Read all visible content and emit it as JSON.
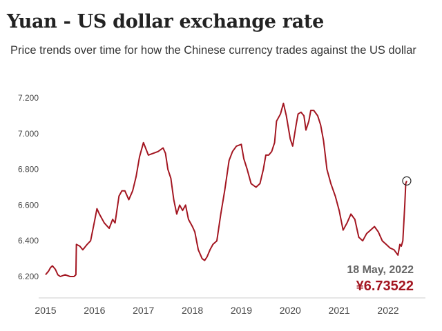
{
  "chart_data": {
    "type": "line",
    "title": "Yuan - US dollar exchange rate",
    "subtitle": "Price trends over time for how the Chinese currency trades against the US dollar",
    "xlabel": "",
    "ylabel": "",
    "ylim": [
      6.18,
      7.22
    ],
    "xlim": [
      2015.0,
      2022.75
    ],
    "y_ticks": [
      "6.200",
      "6.400",
      "6.600",
      "6.800",
      "7.000",
      "7.200"
    ],
    "y_tick_values": [
      6.2,
      6.4,
      6.6,
      6.8,
      7.0,
      7.2
    ],
    "x_ticks": [
      "2015",
      "2016",
      "2017",
      "2018",
      "2019",
      "2020",
      "2021",
      "2022"
    ],
    "x_tick_values": [
      2015,
      2016,
      2017,
      2018,
      2019,
      2020,
      2021,
      2022
    ],
    "grid": false,
    "legend": "none",
    "colors": {
      "line": "#a31621",
      "axis": "#cccccc",
      "marker": "#222222"
    },
    "series": [
      {
        "x": [
          2015.0,
          2015.03,
          2015.06,
          2015.1,
          2015.14,
          2015.2,
          2015.25,
          2015.3,
          2015.4,
          2015.5,
          2015.58,
          2015.62,
          2015.63,
          2015.7,
          2015.76,
          2015.85,
          2015.92,
          2016.0,
          2016.05,
          2016.1,
          2016.2,
          2016.3,
          2016.37,
          2016.42,
          2016.5,
          2016.56,
          2016.62,
          2016.7,
          2016.78,
          2016.85,
          2016.92,
          2017.0,
          2017.1,
          2017.2,
          2017.3,
          2017.4,
          2017.45,
          2017.5,
          2017.56,
          2017.62,
          2017.68,
          2017.74,
          2017.8,
          2017.86,
          2017.92,
          2018.0,
          2018.05,
          2018.12,
          2018.2,
          2018.25,
          2018.3,
          2018.36,
          2018.42,
          2018.5,
          2018.58,
          2018.66,
          2018.75,
          2018.82,
          2018.9,
          2019.0,
          2019.05,
          2019.12,
          2019.2,
          2019.3,
          2019.38,
          2019.45,
          2019.5,
          2019.56,
          2019.62,
          2019.68,
          2019.72,
          2019.8,
          2019.86,
          2019.92,
          2020.0,
          2020.05,
          2020.12,
          2020.16,
          2020.22,
          2020.28,
          2020.32,
          2020.38,
          2020.42,
          2020.48,
          2020.56,
          2020.62,
          2020.68,
          2020.75,
          2020.83,
          2020.92,
          2021.0,
          2021.08,
          2021.16,
          2021.24,
          2021.32,
          2021.4,
          2021.48,
          2021.56,
          2021.64,
          2021.72,
          2021.8,
          2021.88,
          2021.96,
          2022.04,
          2022.12,
          2022.2,
          2022.24,
          2022.27,
          2022.3,
          2022.34,
          2022.36,
          2022.38
        ],
        "values": [
          6.21,
          6.22,
          6.23,
          6.25,
          6.26,
          6.24,
          6.21,
          6.2,
          6.21,
          6.2,
          6.2,
          6.21,
          6.38,
          6.37,
          6.35,
          6.38,
          6.4,
          6.51,
          6.58,
          6.55,
          6.5,
          6.47,
          6.52,
          6.5,
          6.65,
          6.68,
          6.68,
          6.63,
          6.68,
          6.76,
          6.87,
          6.95,
          6.88,
          6.89,
          6.9,
          6.92,
          6.89,
          6.8,
          6.75,
          6.63,
          6.55,
          6.6,
          6.57,
          6.6,
          6.52,
          6.48,
          6.45,
          6.35,
          6.3,
          6.29,
          6.31,
          6.35,
          6.38,
          6.4,
          6.55,
          6.68,
          6.85,
          6.9,
          6.93,
          6.94,
          6.86,
          6.8,
          6.72,
          6.7,
          6.72,
          6.8,
          6.88,
          6.88,
          6.9,
          6.95,
          7.07,
          7.11,
          7.17,
          7.1,
          6.97,
          6.93,
          7.05,
          7.11,
          7.12,
          7.1,
          7.02,
          7.07,
          7.13,
          7.13,
          7.1,
          7.05,
          6.96,
          6.8,
          6.72,
          6.65,
          6.57,
          6.46,
          6.5,
          6.55,
          6.52,
          6.42,
          6.4,
          6.44,
          6.46,
          6.48,
          6.45,
          6.4,
          6.38,
          6.36,
          6.35,
          6.32,
          6.38,
          6.37,
          6.4,
          6.6,
          6.72,
          6.73522
        ]
      }
    ],
    "annotation": {
      "date": "18 May, 2022",
      "value": "¥6.73522",
      "x": 2022.38,
      "y": 6.73522
    }
  }
}
